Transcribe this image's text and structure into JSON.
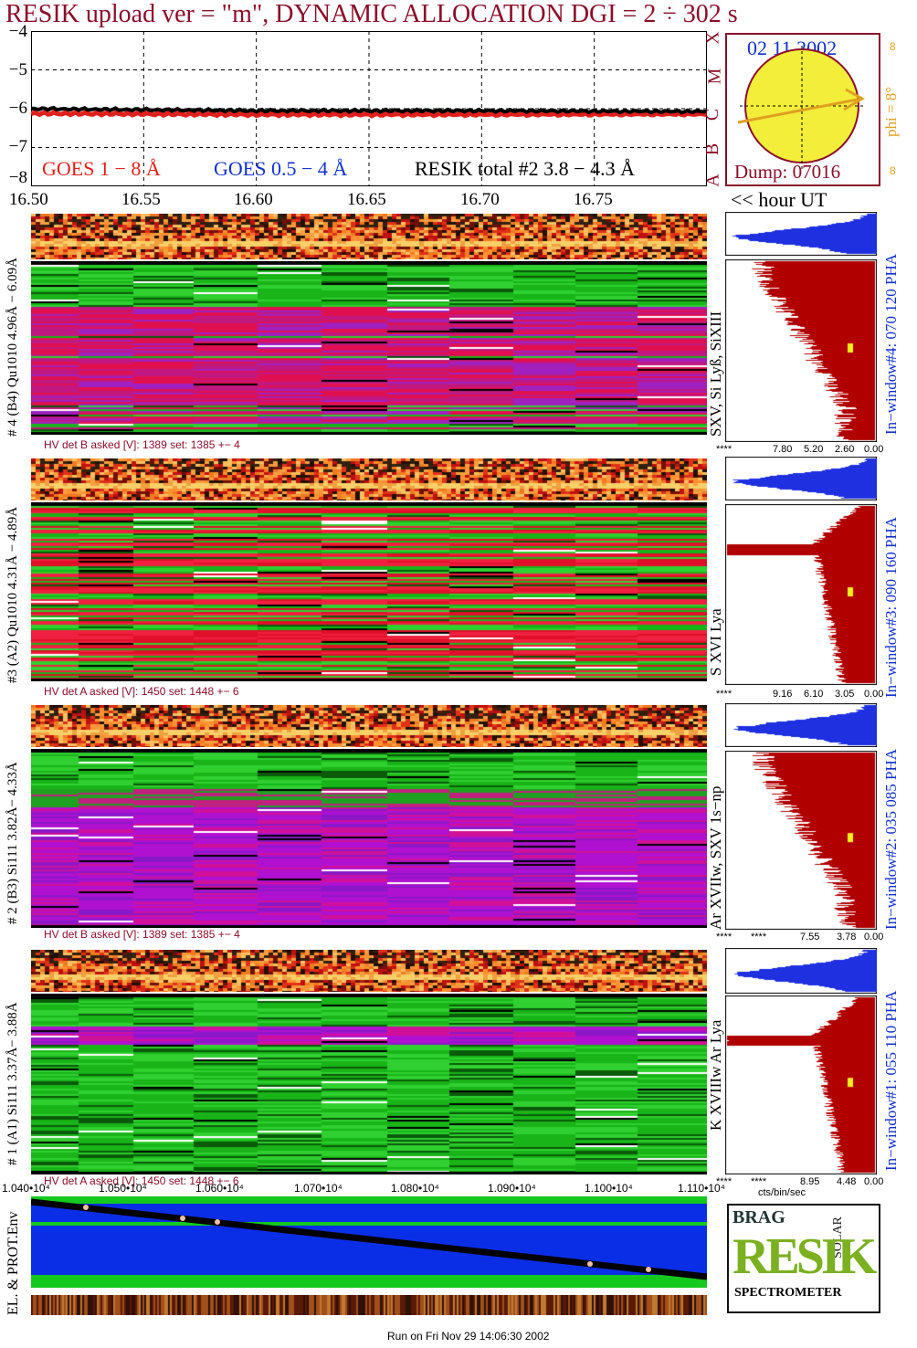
{
  "title": "RESIK upload ver = \"m\", DYNAMIC ALLOCATION  DGI =   2 ÷ 302 s",
  "colors": {
    "title": "#8b0d2a",
    "goes_1_8": "#e0201c",
    "goes_05_4": "#1030d0",
    "resik": "#000000",
    "pha_fill": "#b00000",
    "pha_top": "#1e30e0",
    "sun": "#f2ee3a",
    "orange": "#e0a020"
  },
  "goes_panel": {
    "yticks": [
      "−4",
      "−5",
      "−6",
      "−7",
      "−8"
    ],
    "legend": {
      "goes1": "GOES 1 − 8 Å",
      "goes2": "GOES 0.5 − 4 Å",
      "resik": "RESIK total #2  3.8 − 4.3 Å"
    },
    "flare_classes": [
      "X",
      "M",
      "C",
      "B",
      "A"
    ]
  },
  "chart_data": [
    {
      "type": "line",
      "series": [
        {
          "name": "GOES 1 − 8 Å",
          "x": [
            16.5,
            16.6,
            16.7,
            16.79
          ],
          "values": [
            -6.12,
            -6.15,
            -6.15,
            -6.14
          ]
        },
        {
          "name": "RESIK total #2  3.8 − 4.3 Å",
          "x": [
            16.5,
            16.6,
            16.7,
            16.79
          ],
          "values": [
            -6.0,
            -6.05,
            -6.05,
            -6.07
          ]
        }
      ],
      "xlim": [
        16.5,
        16.8
      ],
      "ylim": [
        -8,
        -4
      ],
      "grid": true
    }
  ],
  "sun": {
    "date": "02 11 2002",
    "dump": "Dump: 07016",
    "phi": "phi =  8°",
    "eight_marks": [
      "8",
      "8"
    ]
  },
  "time_axis": {
    "ticks": [
      "16.50",
      "16.55",
      "16.60",
      "16.65",
      "16.70",
      "16.75"
    ],
    "hour_label": "<< hour UT"
  },
  "channels": [
    {
      "label": "# 4 (B4) Qu1010 4.96Å − 6.09Å",
      "lines": "SXV, Si Lyß, SiXIII",
      "hv": "HV det B asked [V]:  1389 set:  1385 +−    4",
      "window": "In−window#4:  070 120 PHA",
      "pha_ticks": [
        "****",
        "7.80",
        "5.20",
        "2.60",
        "0.00"
      ]
    },
    {
      "label": "#3 (A2) Qu1010  4.31Å − 4.89Å",
      "lines": "S XVI Lya",
      "hv": "HV det A asked [V]:  1450 set:  1448 +−    6",
      "window": "In−window#3:  090 160 PHA",
      "pha_ticks": [
        "****",
        "9.16",
        "6.10",
        "3.05",
        "0.00"
      ]
    },
    {
      "label": "# 2 (B3) Si111  3.82Å− 4.33Å",
      "lines": "Ar XVIIw,  SXV  1s−np",
      "hv": "HV det B asked [V]:  1389 set:  1385 +−    4",
      "window": "In−window#2:  035 085 PHA",
      "pha_ticks": [
        "****",
        "****",
        "7.55",
        "3.78",
        "0.00"
      ]
    },
    {
      "label": "# 1 (A1) Si111  3.37Å− 3.88Å",
      "lines": "K XVIIIw  Ar Lya",
      "hv": "HV det A asked [V]:  1450 set:  1448 +−    6",
      "window": "In−window#1:  055 110 PHA",
      "pha_ticks": [
        "****",
        "****",
        "8.95",
        "4.48",
        "0.00"
      ]
    }
  ],
  "pha_xlabel": "cts/bin/sec",
  "orbit": {
    "ticks": [
      "1.040•10⁴",
      "1.050•10⁴",
      "1.060•10⁴",
      "1.070•10⁴",
      "1.080•10⁴",
      "1.090•10⁴",
      "1.100•10⁴",
      "1.110•10⁴"
    ],
    "ylabel": "EL. & PROT.Env"
  },
  "logo": {
    "word": "RESIK",
    "top_left": "BRAG",
    "top_right": "SOLAR",
    "bottom": "SPECTROMETER"
  },
  "footer": "Run on Fri Nov 29 14:06:30 2002"
}
